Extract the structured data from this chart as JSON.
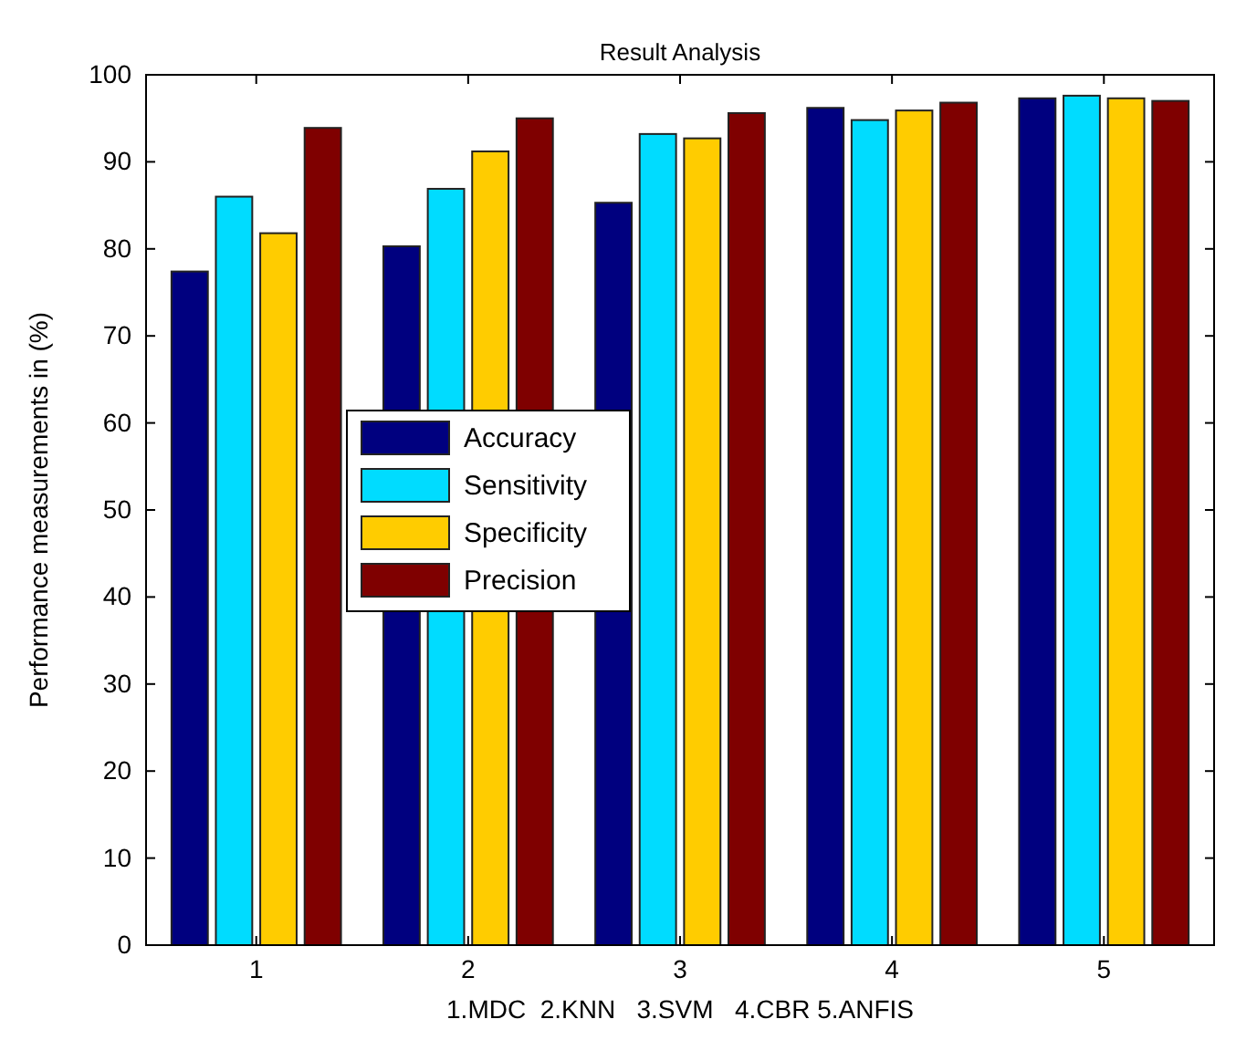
{
  "chart_data": {
    "type": "bar",
    "title": "Result Analysis",
    "xlabel": "1.MDC  2.KNN   3.SVM   4.CBR 5.ANFIS",
    "ylabel": "Performance measurements in (%)",
    "categories": [
      "1",
      "2",
      "3",
      "4",
      "5"
    ],
    "series": [
      {
        "name": "Accuracy",
        "color": "#00007f",
        "values": [
          77.4,
          80.3,
          85.3,
          96.2,
          97.3
        ]
      },
      {
        "name": "Sensitivity",
        "color": "#00dcff",
        "values": [
          86.0,
          86.9,
          93.2,
          94.8,
          97.6
        ]
      },
      {
        "name": "Specificity",
        "color": "#ffcc00",
        "values": [
          81.8,
          91.2,
          92.7,
          95.9,
          97.3
        ]
      },
      {
        "name": "Precision",
        "color": "#7f0000",
        "values": [
          93.9,
          95.0,
          95.6,
          96.8,
          97.0
        ]
      }
    ],
    "ylim": [
      0,
      100
    ],
    "yticks": [
      0,
      10,
      20,
      30,
      40,
      50,
      60,
      70,
      80,
      90,
      100
    ],
    "grid": false,
    "legend": "center left"
  }
}
